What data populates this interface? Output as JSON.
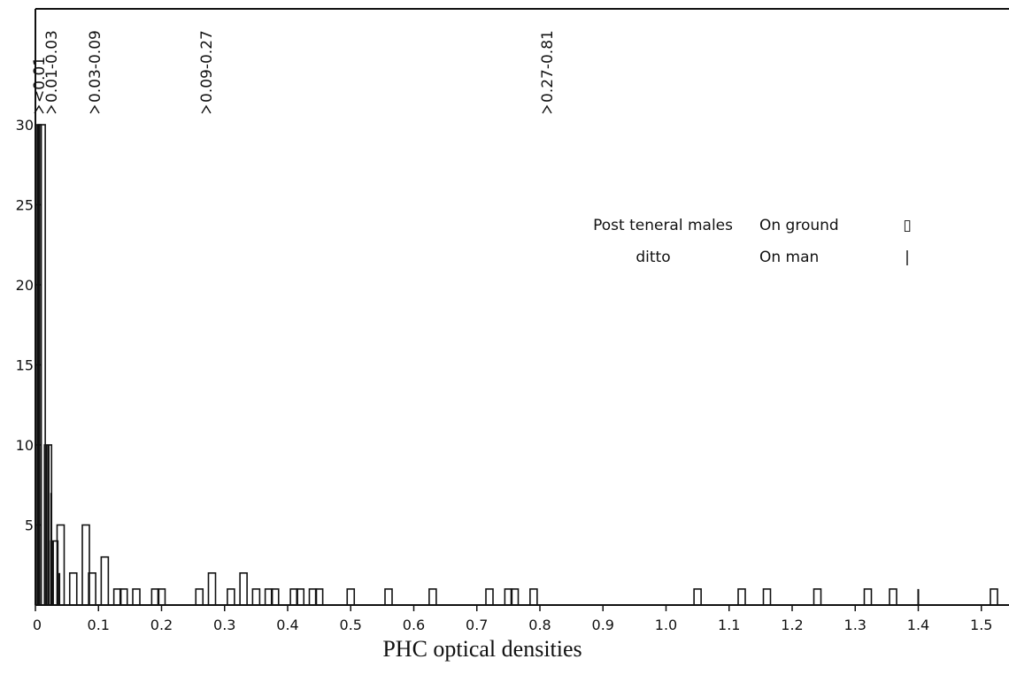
{
  "chart_data": {
    "type": "bar",
    "xlabel": "PHC optical densities",
    "ylabel": "",
    "xlim": [
      0,
      1.55
    ],
    "ylim": [
      0,
      30
    ],
    "x_ticks": [
      "0",
      "0.1",
      "0.2",
      "0.3",
      "0.4",
      "0.5",
      "0.6",
      "0.7",
      "0.8",
      "0.9",
      "1.0",
      "1.1",
      "1.2",
      "1.3",
      "1.4",
      "1.5"
    ],
    "y_ticks": [
      "5",
      "10",
      "15",
      "20",
      "25",
      "30"
    ],
    "annotations": [
      "<0.01",
      "0.01-0.03",
      "0.03-0.09",
      "0.09-0.27",
      "0.27-0.81"
    ],
    "annotation_x": [
      0.005,
      0.02,
      0.09,
      0.27,
      0.81
    ],
    "legend_position": "top-right",
    "series": [
      {
        "name": "Post teneral males",
        "condition": "On ground",
        "symbol": "▯",
        "points": [
          [
            0.01,
            30
          ],
          [
            0.02,
            10
          ],
          [
            0.03,
            4
          ],
          [
            0.04,
            5
          ],
          [
            0.06,
            2
          ],
          [
            0.08,
            5
          ],
          [
            0.09,
            2
          ],
          [
            0.11,
            3
          ],
          [
            0.13,
            1
          ],
          [
            0.14,
            1
          ],
          [
            0.16,
            1
          ],
          [
            0.19,
            1
          ],
          [
            0.2,
            1
          ],
          [
            0.26,
            1
          ],
          [
            0.28,
            2
          ],
          [
            0.31,
            1
          ],
          [
            0.33,
            2
          ],
          [
            0.35,
            1
          ],
          [
            0.37,
            1
          ],
          [
            0.38,
            1
          ],
          [
            0.41,
            1
          ],
          [
            0.42,
            1
          ],
          [
            0.44,
            1
          ],
          [
            0.45,
            1
          ],
          [
            0.5,
            1
          ],
          [
            0.56,
            1
          ],
          [
            0.63,
            1
          ],
          [
            0.72,
            1
          ],
          [
            0.75,
            1
          ],
          [
            0.76,
            1
          ],
          [
            0.79,
            1
          ],
          [
            1.05,
            1
          ],
          [
            1.12,
            1
          ],
          [
            1.16,
            1
          ],
          [
            1.24,
            1
          ],
          [
            1.32,
            1
          ],
          [
            1.36,
            1
          ],
          [
            1.52,
            1
          ]
        ]
      },
      {
        "name": "ditto",
        "condition": "On man",
        "symbol": "|",
        "points": [
          [
            0.003,
            30
          ],
          [
            0.006,
            30
          ],
          [
            0.009,
            30
          ],
          [
            0.018,
            10
          ],
          [
            0.021,
            10
          ],
          [
            0.025,
            7
          ],
          [
            0.028,
            4
          ],
          [
            0.035,
            2
          ],
          [
            0.038,
            2
          ],
          [
            1.4,
            1
          ]
        ]
      }
    ]
  }
}
